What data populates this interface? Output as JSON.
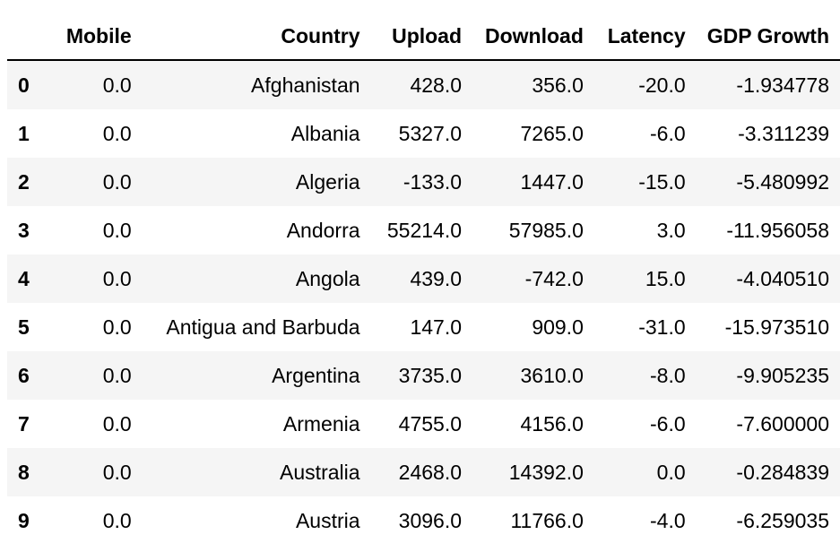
{
  "table": {
    "columns": [
      "Mobile",
      "Country",
      "Upload",
      "Download",
      "Latency",
      "GDP Growth"
    ],
    "rows": [
      {
        "index": "0",
        "cells": [
          "0.0",
          "Afghanistan",
          "428.0",
          "356.0",
          "-20.0",
          "-1.934778"
        ]
      },
      {
        "index": "1",
        "cells": [
          "0.0",
          "Albania",
          "5327.0",
          "7265.0",
          "-6.0",
          "-3.311239"
        ]
      },
      {
        "index": "2",
        "cells": [
          "0.0",
          "Algeria",
          "-133.0",
          "1447.0",
          "-15.0",
          "-5.480992"
        ]
      },
      {
        "index": "3",
        "cells": [
          "0.0",
          "Andorra",
          "55214.0",
          "57985.0",
          "3.0",
          "-11.956058"
        ]
      },
      {
        "index": "4",
        "cells": [
          "0.0",
          "Angola",
          "439.0",
          "-742.0",
          "15.0",
          "-4.040510"
        ]
      },
      {
        "index": "5",
        "cells": [
          "0.0",
          "Antigua and Barbuda",
          "147.0",
          "909.0",
          "-31.0",
          "-15.973510"
        ]
      },
      {
        "index": "6",
        "cells": [
          "0.0",
          "Argentina",
          "3735.0",
          "3610.0",
          "-8.0",
          "-9.905235"
        ]
      },
      {
        "index": "7",
        "cells": [
          "0.0",
          "Armenia",
          "4755.0",
          "4156.0",
          "-6.0",
          "-7.600000"
        ]
      },
      {
        "index": "8",
        "cells": [
          "0.0",
          "Australia",
          "2468.0",
          "14392.0",
          "0.0",
          "-0.284839"
        ]
      },
      {
        "index": "9",
        "cells": [
          "0.0",
          "Austria",
          "3096.0",
          "11766.0",
          "-4.0",
          "-6.259035"
        ]
      }
    ]
  }
}
